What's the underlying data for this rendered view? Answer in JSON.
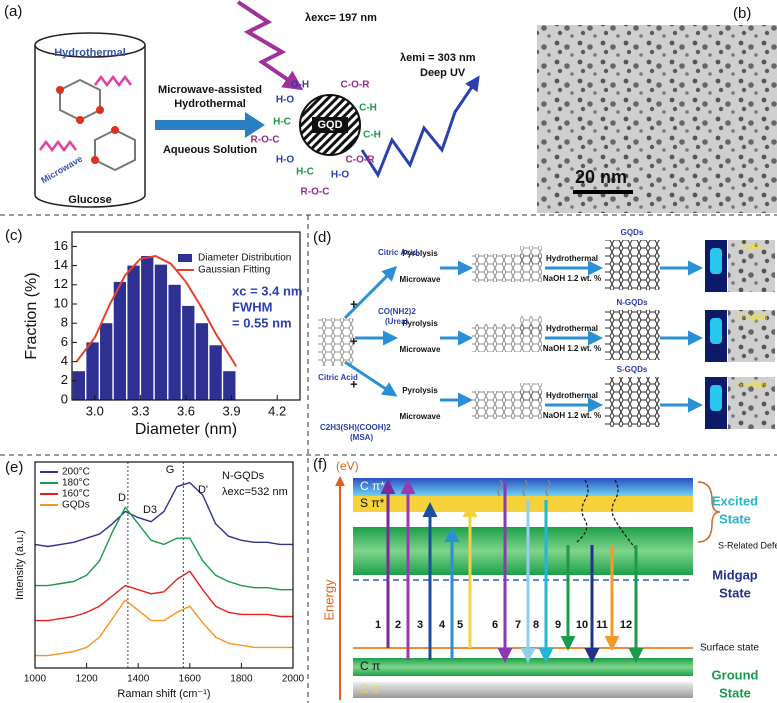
{
  "panels": {
    "a": {
      "label": "(a)",
      "vessel": "Hydrothermal",
      "microwave": "Microwave",
      "precursor": "Glucose",
      "method1": "Microwave-assisted",
      "method2": "Hydrothermal",
      "medium": "Aqueous Solution",
      "excitation": "λexc= 197 nm",
      "emission": "λemi = 303 nm",
      "emission_note": "Deep UV",
      "dot": "GQD",
      "groups": [
        "O-H",
        "H-O",
        "C-O-R",
        "C-H",
        "H-C",
        "R-O-C",
        "H-O",
        "H-C",
        "R-O-C",
        "H-O",
        "C-O-R",
        "C-H"
      ]
    },
    "b": {
      "label": "(b)",
      "scale": "20 nm"
    },
    "d": {
      "label": "(d)",
      "precursor": "Citric Acid",
      "reagent1": "Citric Acid",
      "reagent2a": "CO(NH2)2",
      "reagent2b": "(Urea)",
      "reagent3a": "C2H3(SH)(COOH)2",
      "reagent3b": "(MSA)",
      "step1": "Pyrolysis",
      "step1b": "Microwave",
      "step2": "Hydrothermal",
      "step2b": "NaOH 1.2 wt. %",
      "products": [
        "GQDs",
        "N-GQDs",
        "S-GQDs"
      ],
      "plus": "+"
    },
    "f": {
      "label": "(f)",
      "unit": "(eV)",
      "axis": "Energy",
      "c_pi_star": "C π*",
      "s_pi_star": "S π*",
      "excited1": "Excited",
      "excited2": "State",
      "defects": "S-Related Defects",
      "midgap1": "Midgap",
      "midgap2": "State",
      "surface": "Surface state",
      "c_pi": "C π",
      "c_sigma": "C σ",
      "ground1": "Ground",
      "ground2": "State",
      "transitions": [
        "1",
        "2",
        "3",
        "4",
        "5",
        "6",
        "7",
        "8",
        "9",
        "10",
        "11",
        "12"
      ]
    }
  },
  "chart_data": [
    {
      "type": "histogram",
      "label": "(c)",
      "xlabel": "Diameter (nm)",
      "ylabel": "Fraction (%)",
      "bins": [
        2.85,
        2.94,
        3.03,
        3.12,
        3.21,
        3.3,
        3.39,
        3.48,
        3.57,
        3.66,
        3.75,
        3.84,
        3.93
      ],
      "series": [
        {
          "name": "Diameter Distribution",
          "color": "#2e3192",
          "values": [
            3,
            6,
            8,
            12.3,
            14,
            15,
            14.1,
            12,
            9.8,
            8,
            5.7,
            3
          ]
        },
        {
          "name": "Gaussian Fitting",
          "color": "#e8412c",
          "x": [
            2.88,
            3.0,
            3.1,
            3.2,
            3.3,
            3.4,
            3.5,
            3.6,
            3.7,
            3.8,
            3.9,
            3.93
          ],
          "values": [
            4,
            6.5,
            10,
            13,
            14.7,
            15,
            14.2,
            12.3,
            9.7,
            6.8,
            4.3,
            3.5
          ]
        }
      ],
      "annotations": [
        "xc = 3.4 nm",
        "FWHM",
        "= 0.55 nm"
      ],
      "xlim": [
        2.85,
        4.35
      ],
      "xticks": [
        {
          "value": 3,
          "label": "3.0"
        },
        3.3,
        3.6,
        3.9,
        4.2
      ],
      "ylim": [
        0,
        17.5
      ],
      "yticks": [
        0,
        2,
        4,
        6,
        8,
        10,
        12,
        14,
        16
      ]
    },
    {
      "type": "line",
      "label": "(e)",
      "xlabel": "Raman shift (cm⁻¹)",
      "ylabel": "Intensity (a.u.)",
      "x": [
        1000,
        1050,
        1100,
        1150,
        1200,
        1250,
        1300,
        1350,
        1400,
        1450,
        1500,
        1550,
        1600,
        1650,
        1700,
        1750,
        1800,
        1850,
        1900,
        1950,
        2000
      ],
      "series": [
        {
          "name": "200°C",
          "color": "#2e3192",
          "values": [
            60,
            59,
            60,
            61,
            63,
            65,
            70,
            76,
            73,
            71,
            76,
            88,
            90,
            84,
            70,
            64,
            62,
            61,
            61,
            60,
            60
          ]
        },
        {
          "name": "180°C",
          "color": "#1a9a4a",
          "values": [
            40,
            40,
            41,
            42,
            45,
            52,
            66,
            78,
            70,
            62,
            60,
            63,
            63,
            52,
            45,
            42,
            40,
            39,
            39,
            38,
            38
          ]
        },
        {
          "name": "160°C",
          "color": "#e62020",
          "values": [
            23,
            23,
            24,
            25,
            27,
            30,
            35,
            40,
            38,
            36,
            37,
            43,
            47,
            38,
            30,
            27,
            26,
            26,
            26,
            25,
            25
          ]
        },
        {
          "name": "GQDs",
          "color": "#f7941d",
          "values": [
            6,
            6,
            7,
            8,
            10,
            15,
            24,
            33,
            28,
            23,
            23,
            27,
            30,
            22,
            15,
            12,
            11,
            10,
            10,
            10,
            10
          ]
        }
      ],
      "reference_lines": [
        1360,
        1575
      ],
      "peaks": [
        "D",
        "D3",
        "G",
        "D'"
      ],
      "annotations": [
        "N-GQDs",
        "λexc=532 nm"
      ],
      "xlim": [
        1000,
        2000
      ],
      "xticks": [
        1000,
        1200,
        1400,
        1600,
        1800,
        2000
      ],
      "ylim": [
        0,
        100
      ]
    }
  ]
}
